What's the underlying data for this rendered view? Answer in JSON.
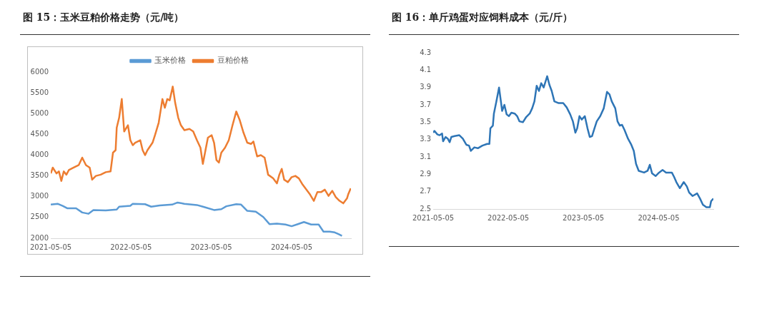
{
  "chart_data": [
    {
      "type": "line",
      "title": "图 15：玉米豆粕价格走势（元/吨）",
      "legend": "top",
      "xlim": [
        "2021-05-05",
        "2025-01-30"
      ],
      "xticks": [
        "2021-05-05",
        "2022-05-05",
        "2023-05-05",
        "2024-05-05"
      ],
      "ylim": [
        2000,
        6000
      ],
      "yticks": [
        2000,
        2500,
        3000,
        3500,
        4000,
        4500,
        5000,
        5500,
        6000
      ],
      "series": [
        {
          "name": "玉米价格",
          "color": "#5b9bd5",
          "x": [
            "2021-05-05",
            "2021-06-05",
            "2021-06-28",
            "2021-07-20",
            "2021-08-28",
            "2021-09-25",
            "2021-10-23",
            "2021-11-15",
            "2022-01-10",
            "2022-03-01",
            "2022-03-12",
            "2022-05-02",
            "2022-05-13",
            "2022-07-08",
            "2022-08-05",
            "2022-09-13",
            "2022-11-08",
            "2022-12-03",
            "2023-01-03",
            "2023-03-01",
            "2023-04-03",
            "2023-05-18",
            "2023-06-20",
            "2023-07-13",
            "2023-08-27",
            "2023-09-18",
            "2023-10-16",
            "2023-11-24",
            "2023-12-28",
            "2024-01-25",
            "2024-02-28",
            "2024-04-07",
            "2024-05-05",
            "2024-06-02",
            "2024-06-30",
            "2024-08-02",
            "2024-09-05",
            "2024-09-27",
            "2024-10-25",
            "2024-11-17",
            "2024-12-04",
            "2024-12-20"
          ],
          "values": [
            2810,
            2830,
            2780,
            2720,
            2720,
            2620,
            2590,
            2680,
            2670,
            2690,
            2760,
            2780,
            2830,
            2820,
            2760,
            2790,
            2810,
            2860,
            2830,
            2800,
            2750,
            2680,
            2700,
            2770,
            2820,
            2810,
            2660,
            2640,
            2510,
            2340,
            2350,
            2330,
            2290,
            2340,
            2390,
            2330,
            2330,
            2160,
            2160,
            2140,
            2100,
            2060
          ]
        },
        {
          "name": "豆粕价格",
          "color": "#ed7d31",
          "x": [
            "2021-05-05",
            "2021-05-14",
            "2021-05-31",
            "2021-06-11",
            "2021-06-22",
            "2021-07-03",
            "2021-07-15",
            "2021-07-26",
            "2021-08-17",
            "2021-09-09",
            "2021-09-25",
            "2021-10-12",
            "2021-10-29",
            "2021-11-09",
            "2021-11-26",
            "2021-12-18",
            "2022-01-10",
            "2022-02-01",
            "2022-02-12",
            "2022-02-24",
            "2022-03-01",
            "2022-03-12",
            "2022-03-24",
            "2022-04-04",
            "2022-04-21",
            "2022-05-02",
            "2022-05-13",
            "2022-05-24",
            "2022-06-16",
            "2022-06-27",
            "2022-07-08",
            "2022-07-19",
            "2022-08-11",
            "2022-08-22",
            "2022-09-08",
            "2022-09-25",
            "2022-10-06",
            "2022-10-17",
            "2022-10-28",
            "2022-11-11",
            "2022-11-22",
            "2022-12-06",
            "2022-12-18",
            "2023-01-03",
            "2023-01-26",
            "2023-02-12",
            "2023-03-01",
            "2023-03-17",
            "2023-03-28",
            "2023-04-09",
            "2023-04-20",
            "2023-05-07",
            "2023-05-18",
            "2023-05-29",
            "2023-06-09",
            "2023-06-20",
            "2023-07-07",
            "2023-07-24",
            "2023-08-10",
            "2023-08-27",
            "2023-09-12",
            "2023-09-29",
            "2023-10-16",
            "2023-11-02",
            "2023-11-13",
            "2023-11-30",
            "2023-12-17",
            "2024-01-03",
            "2024-01-19",
            "2024-02-11",
            "2024-02-28",
            "2024-03-10",
            "2024-03-21",
            "2024-04-01",
            "2024-04-18",
            "2024-05-05",
            "2024-05-22",
            "2024-06-07",
            "2024-06-24",
            "2024-07-11",
            "2024-07-28",
            "2024-08-14",
            "2024-08-30",
            "2024-09-16",
            "2024-10-03",
            "2024-10-20",
            "2024-11-06",
            "2024-11-22",
            "2024-12-09",
            "2024-12-26",
            "2025-01-12",
            "2025-01-17",
            "2025-01-29"
          ],
          "values": [
            3560,
            3700,
            3560,
            3610,
            3380,
            3610,
            3530,
            3640,
            3700,
            3760,
            3940,
            3760,
            3700,
            3410,
            3500,
            3530,
            3590,
            3610,
            4060,
            4120,
            4660,
            4900,
            5350,
            4570,
            4720,
            4360,
            4240,
            4300,
            4360,
            4120,
            4000,
            4120,
            4300,
            4480,
            4780,
            5350,
            5140,
            5350,
            5320,
            5650,
            5260,
            4900,
            4720,
            4600,
            4630,
            4570,
            4360,
            4180,
            3790,
            4120,
            4420,
            4480,
            4300,
            3880,
            3820,
            4060,
            4180,
            4360,
            4720,
            5050,
            4840,
            4540,
            4300,
            4270,
            4330,
            3970,
            4000,
            3940,
            3530,
            3440,
            3320,
            3530,
            3670,
            3410,
            3350,
            3470,
            3500,
            3440,
            3290,
            3170,
            3050,
            2900,
            3110,
            3110,
            3170,
            3020,
            3140,
            2990,
            2900,
            2840,
            2960,
            3050,
            3200
          ]
        }
      ]
    },
    {
      "type": "line",
      "title": "图 16：单斤鸡蛋对应饲料成本（元/斤）",
      "xlim": [
        "2021-05-05",
        "2025-01-26"
      ],
      "xticks": [
        "2021-05-05",
        "2022-05-05",
        "2023-05-05",
        "2024-05-05"
      ],
      "ylim": [
        2.5,
        4.3
      ],
      "yticks": [
        2.5,
        2.7,
        2.9,
        3.1,
        3.3,
        3.5,
        3.7,
        3.9,
        4.1,
        4.3
      ],
      "series": [
        {
          "color": "#2e75b6",
          "x": [
            "2021-05-05",
            "2021-05-11",
            "2021-05-25",
            "2021-06-05",
            "2021-06-17",
            "2021-06-22",
            "2021-07-04",
            "2021-07-15",
            "2021-07-24",
            "2021-08-01",
            "2021-08-17",
            "2021-09-09",
            "2021-09-26",
            "2021-10-13",
            "2021-10-26",
            "2021-11-04",
            "2021-11-21",
            "2021-12-08",
            "2021-12-30",
            "2022-01-22",
            "2022-02-02",
            "2022-02-07",
            "2022-02-19",
            "2022-02-24",
            "2022-03-08",
            "2022-03-21",
            "2022-03-30",
            "2022-04-05",
            "2022-04-16",
            "2022-04-27",
            "2022-05-08",
            "2022-05-20",
            "2022-06-05",
            "2022-06-17",
            "2022-06-28",
            "2022-07-15",
            "2022-07-31",
            "2022-08-17",
            "2022-08-29",
            "2022-09-09",
            "2022-09-20",
            "2022-10-01",
            "2022-10-12",
            "2022-10-24",
            "2022-11-10",
            "2022-11-21",
            "2022-12-02",
            "2022-12-15",
            "2023-01-05",
            "2023-01-27",
            "2023-02-13",
            "2023-03-02",
            "2023-03-15",
            "2023-03-27",
            "2023-04-05",
            "2023-04-16",
            "2023-04-27",
            "2023-05-12",
            "2023-05-25",
            "2023-06-05",
            "2023-06-16",
            "2023-06-28",
            "2023-07-09",
            "2023-07-26",
            "2023-08-12",
            "2023-08-28",
            "2023-09-09",
            "2023-09-20",
            "2023-10-07",
            "2023-10-18",
            "2023-10-29",
            "2023-11-09",
            "2023-11-21",
            "2023-12-08",
            "2023-12-24",
            "2024-01-05",
            "2024-01-16",
            "2024-01-29",
            "2024-02-24",
            "2024-03-12",
            "2024-03-23",
            "2024-04-03",
            "2024-04-20",
            "2024-05-07",
            "2024-05-24",
            "2024-06-10",
            "2024-07-08",
            "2024-07-19",
            "2024-07-30",
            "2024-08-16",
            "2024-09-04",
            "2024-09-19",
            "2024-09-30",
            "2024-10-17",
            "2024-11-08",
            "2024-11-22",
            "2024-12-06",
            "2024-12-23",
            "2025-01-09",
            "2025-01-15",
            "2025-01-26"
          ],
          "values": [
            3.38,
            3.4,
            3.36,
            3.35,
            3.37,
            3.28,
            3.33,
            3.31,
            3.27,
            3.33,
            3.34,
            3.35,
            3.31,
            3.24,
            3.23,
            3.17,
            3.21,
            3.2,
            3.23,
            3.25,
            3.25,
            3.43,
            3.46,
            3.6,
            3.74,
            3.9,
            3.74,
            3.63,
            3.7,
            3.59,
            3.57,
            3.61,
            3.6,
            3.57,
            3.51,
            3.5,
            3.56,
            3.6,
            3.66,
            3.74,
            3.92,
            3.86,
            3.95,
            3.9,
            4.03,
            3.93,
            3.86,
            3.74,
            3.72,
            3.72,
            3.67,
            3.59,
            3.51,
            3.38,
            3.43,
            3.57,
            3.53,
            3.57,
            3.43,
            3.33,
            3.34,
            3.43,
            3.51,
            3.57,
            3.66,
            3.85,
            3.82,
            3.74,
            3.66,
            3.51,
            3.46,
            3.47,
            3.41,
            3.31,
            3.24,
            3.17,
            3.02,
            2.94,
            2.92,
            2.94,
            3.01,
            2.91,
            2.88,
            2.92,
            2.95,
            2.92,
            2.92,
            2.87,
            2.81,
            2.74,
            2.81,
            2.76,
            2.69,
            2.65,
            2.68,
            2.62,
            2.55,
            2.52,
            2.52,
            2.59,
            2.62
          ]
        }
      ]
    }
  ]
}
